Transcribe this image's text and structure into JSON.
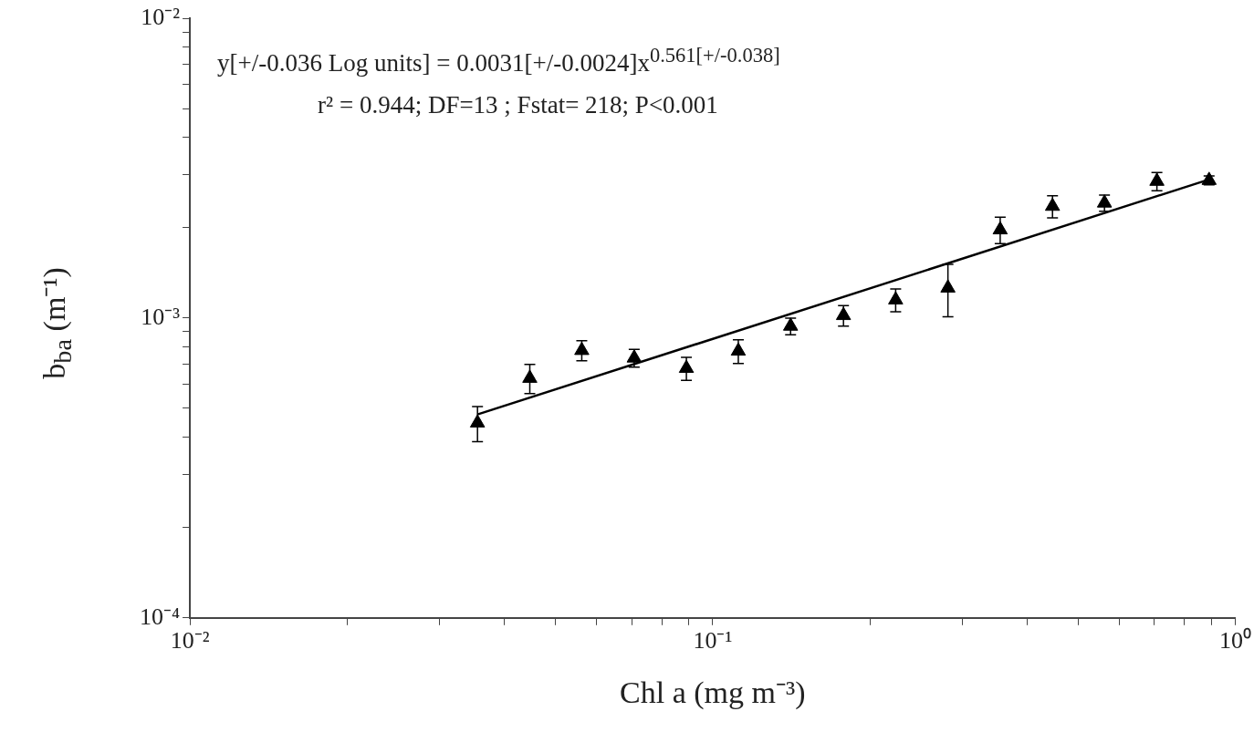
{
  "chart_data": {
    "type": "scatter",
    "xlabel": "Chl a  (mg m⁻³)",
    "ylabel": "b$_{ba}$ (m⁻¹)",
    "annotations": [
      "y[+/-0.036 Log units] = 0.0031[+/-0.0024]x$^{0.561[+/-0.038]}$",
      "r² = 0.944; DF=13 ; Fstat= 218; P<0.001"
    ],
    "log": "xy",
    "grid": false,
    "legend": false,
    "marker": "triangle",
    "xlim": [
      0.01,
      1
    ],
    "ylim": [
      0.0001,
      0.01
    ],
    "xticks": [
      {
        "value": 0.01,
        "label": "10⁻²"
      },
      {
        "value": 0.02,
        "label": null
      },
      {
        "value": 0.03,
        "label": null
      },
      {
        "value": 0.04,
        "label": null
      },
      {
        "value": 0.05,
        "label": null
      },
      {
        "value": 0.06,
        "label": null
      },
      {
        "value": 0.07,
        "label": null
      },
      {
        "value": 0.08,
        "label": null
      },
      {
        "value": 0.09,
        "label": null
      },
      {
        "value": 0.1,
        "label": "10⁻¹"
      },
      {
        "value": 0.2,
        "label": null
      },
      {
        "value": 0.3,
        "label": null
      },
      {
        "value": 0.4,
        "label": null
      },
      {
        "value": 0.5,
        "label": null
      },
      {
        "value": 0.6,
        "label": null
      },
      {
        "value": 0.7,
        "label": null
      },
      {
        "value": 0.8,
        "label": null
      },
      {
        "value": 0.9,
        "label": null
      },
      {
        "value": 1,
        "label": "10⁰"
      }
    ],
    "yticks": [
      {
        "value": 0.0001,
        "label": "10⁻⁴"
      },
      {
        "value": 0.0002,
        "label": null
      },
      {
        "value": 0.0003,
        "label": null
      },
      {
        "value": 0.0004,
        "label": null
      },
      {
        "value": 0.0005,
        "label": null
      },
      {
        "value": 0.0006,
        "label": null
      },
      {
        "value": 0.0007,
        "label": null
      },
      {
        "value": 0.0008,
        "label": null
      },
      {
        "value": 0.0009,
        "label": null
      },
      {
        "value": 0.001,
        "label": "10⁻³"
      },
      {
        "value": 0.002,
        "label": null
      },
      {
        "value": 0.003,
        "label": null
      },
      {
        "value": 0.004,
        "label": null
      },
      {
        "value": 0.005,
        "label": null
      },
      {
        "value": 0.006,
        "label": null
      },
      {
        "value": 0.007,
        "label": null
      },
      {
        "value": 0.008,
        "label": null
      },
      {
        "value": 0.009,
        "label": null
      },
      {
        "value": 0.01,
        "label": "10⁻²"
      }
    ],
    "series": [
      {
        "color": "#000000",
        "x": [
          0.0355,
          0.0447,
          0.0562,
          0.0708,
          0.0891,
          0.112,
          0.141,
          0.178,
          0.224,
          0.282,
          0.355,
          0.447,
          0.562,
          0.708,
          0.891
        ],
        "values": [
          0.000447,
          0.00063,
          0.00078,
          0.000736,
          0.00068,
          0.000776,
          0.00094,
          0.00102,
          0.00115,
          0.00126,
          0.00197,
          0.00236,
          0.00242,
          0.00286,
          0.00288
        ],
        "errors": [
          6e-05,
          7e-05,
          6e-05,
          5e-05,
          6e-05,
          7e-05,
          6e-05,
          8e-05,
          0.0001,
          0.00025,
          0.0002,
          0.0002,
          0.00015,
          0.0002,
          0.0001
        ]
      },
      {
        "type": "line",
        "color": "#000000",
        "x": [
          0.0355,
          0.891
        ],
        "values": [
          0.000477,
          0.0029
        ]
      }
    ]
  }
}
